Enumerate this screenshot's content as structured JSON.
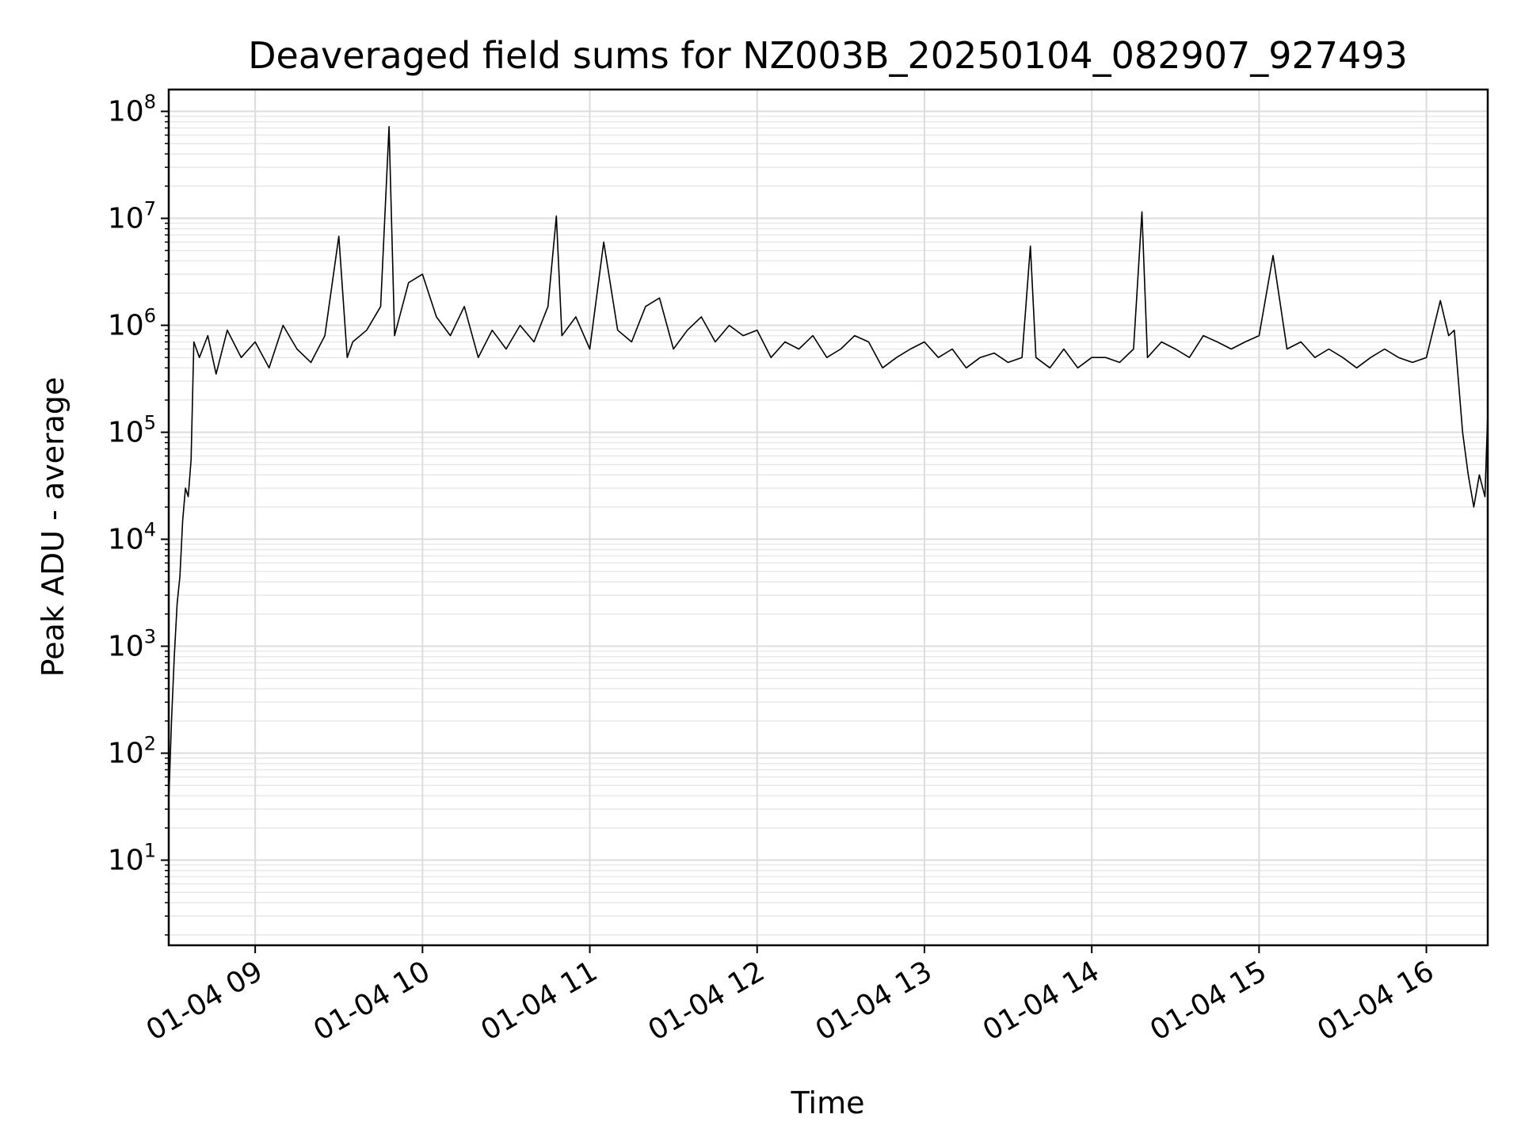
{
  "chart_data": {
    "type": "line",
    "title": "Deaveraged field sums for NZ003B_20250104_082907_927493",
    "xlabel": "Time",
    "ylabel": "Peak ADU - average",
    "yscale": "log",
    "xlim": [
      "01-04 08:29",
      "01-04 16:22"
    ],
    "ylim": [
      1.6,
      160000000
    ],
    "grid": true,
    "line_color": "#000000",
    "x_ticks": [
      {
        "value": "01-04 09:00",
        "label": "01-04 09"
      },
      {
        "value": "01-04 10:00",
        "label": "01-04 10"
      },
      {
        "value": "01-04 11:00",
        "label": "01-04 11"
      },
      {
        "value": "01-04 12:00",
        "label": "01-04 12"
      },
      {
        "value": "01-04 13:00",
        "label": "01-04 13"
      },
      {
        "value": "01-04 14:00",
        "label": "01-04 14"
      },
      {
        "value": "01-04 15:00",
        "label": "01-04 15"
      },
      {
        "value": "01-04 16:00",
        "label": "01-04 16"
      }
    ],
    "y_ticks": [
      {
        "value": 10,
        "base": "10",
        "exp": "1"
      },
      {
        "value": 100,
        "base": "10",
        "exp": "2"
      },
      {
        "value": 1000,
        "base": "10",
        "exp": "3"
      },
      {
        "value": 10000,
        "base": "10",
        "exp": "4"
      },
      {
        "value": 100000,
        "base": "10",
        "exp": "5"
      },
      {
        "value": 1000000,
        "base": "10",
        "exp": "6"
      },
      {
        "value": 10000000,
        "base": "10",
        "exp": "7"
      },
      {
        "value": 100000000,
        "base": "10",
        "exp": "8"
      }
    ],
    "series": [
      {
        "x": [
          "01-04 08:29",
          "01-04 08:30",
          "01-04 08:31",
          "01-04 08:32",
          "01-04 08:33",
          "01-04 08:34",
          "01-04 08:35",
          "01-04 08:36",
          "01-04 08:37",
          "01-04 08:38",
          "01-04 08:40",
          "01-04 08:43",
          "01-04 08:46",
          "01-04 08:50",
          "01-04 08:55",
          "01-04 09:00",
          "01-04 09:05",
          "01-04 09:10",
          "01-04 09:15",
          "01-04 09:20",
          "01-04 09:25",
          "01-04 09:30",
          "01-04 09:33",
          "01-04 09:35",
          "01-04 09:40",
          "01-04 09:45",
          "01-04 09:48",
          "01-04 09:50",
          "01-04 09:55",
          "01-04 10:00",
          "01-04 10:05",
          "01-04 10:10",
          "01-04 10:15",
          "01-04 10:20",
          "01-04 10:25",
          "01-04 10:30",
          "01-04 10:35",
          "01-04 10:40",
          "01-04 10:45",
          "01-04 10:48",
          "01-04 10:50",
          "01-04 10:55",
          "01-04 11:00",
          "01-04 11:05",
          "01-04 11:10",
          "01-04 11:15",
          "01-04 11:20",
          "01-04 11:25",
          "01-04 11:30",
          "01-04 11:35",
          "01-04 11:40",
          "01-04 11:45",
          "01-04 11:50",
          "01-04 11:55",
          "01-04 12:00",
          "01-04 12:05",
          "01-04 12:10",
          "01-04 12:15",
          "01-04 12:20",
          "01-04 12:25",
          "01-04 12:30",
          "01-04 12:35",
          "01-04 12:40",
          "01-04 12:45",
          "01-04 12:50",
          "01-04 12:55",
          "01-04 13:00",
          "01-04 13:05",
          "01-04 13:10",
          "01-04 13:15",
          "01-04 13:20",
          "01-04 13:25",
          "01-04 13:30",
          "01-04 13:35",
          "01-04 13:38",
          "01-04 13:40",
          "01-04 13:45",
          "01-04 13:50",
          "01-04 13:55",
          "01-04 14:00",
          "01-04 14:05",
          "01-04 14:10",
          "01-04 14:15",
          "01-04 14:18",
          "01-04 14:20",
          "01-04 14:25",
          "01-04 14:30",
          "01-04 14:35",
          "01-04 14:40",
          "01-04 14:45",
          "01-04 14:50",
          "01-04 14:55",
          "01-04 15:00",
          "01-04 15:05",
          "01-04 15:10",
          "01-04 15:15",
          "01-04 15:20",
          "01-04 15:25",
          "01-04 15:30",
          "01-04 15:35",
          "01-04 15:40",
          "01-04 15:45",
          "01-04 15:50",
          "01-04 15:55",
          "01-04 16:00",
          "01-04 16:05",
          "01-04 16:08",
          "01-04 16:10",
          "01-04 16:13",
          "01-04 16:15",
          "01-04 16:17",
          "01-04 16:19",
          "01-04 16:21",
          "01-04 16:22"
        ],
        "y": [
          35,
          200,
          800,
          2500,
          4500,
          15000,
          30000,
          25000,
          55000,
          700000,
          500000,
          800000,
          350000,
          900000,
          500000,
          700000,
          400000,
          1000000,
          600000,
          450000,
          800000,
          6800000,
          500000,
          700000,
          900000,
          1500000,
          72000000,
          800000,
          2500000,
          3000000,
          1200000,
          800000,
          1500000,
          500000,
          900000,
          600000,
          1000000,
          700000,
          1500000,
          10500000,
          800000,
          1200000,
          600000,
          6000000,
          900000,
          700000,
          1500000,
          1800000,
          600000,
          900000,
          1200000,
          700000,
          1000000,
          800000,
          900000,
          500000,
          700000,
          600000,
          800000,
          500000,
          600000,
          800000,
          700000,
          400000,
          500000,
          600000,
          700000,
          500000,
          600000,
          400000,
          500000,
          550000,
          450000,
          500000,
          5500000,
          500000,
          400000,
          600000,
          400000,
          500000,
          500000,
          450000,
          600000,
          11500000,
          500000,
          700000,
          600000,
          500000,
          800000,
          700000,
          600000,
          700000,
          800000,
          4500000,
          600000,
          700000,
          500000,
          600000,
          500000,
          400000,
          500000,
          600000,
          500000,
          450000,
          500000,
          1700000,
          800000,
          900000,
          100000,
          40000,
          20000,
          40000,
          25000,
          150000
        ]
      }
    ]
  }
}
